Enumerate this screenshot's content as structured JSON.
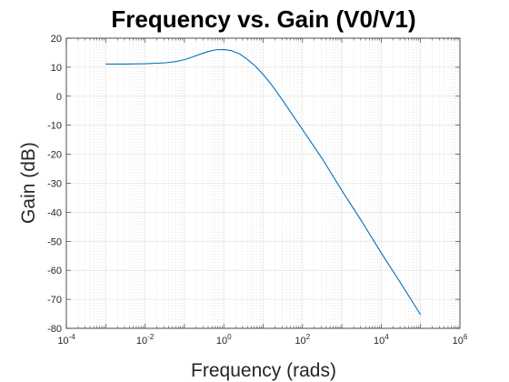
{
  "chart_data": {
    "type": "line",
    "title": "Frequency vs. Gain (V0/V1)",
    "xlabel": "Frequency (rads)",
    "ylabel": "Gain (dB)",
    "xscale": "log",
    "xlim_exp": [
      -4,
      6
    ],
    "ylim": [
      -80,
      20
    ],
    "grid": true,
    "minor_grid": true,
    "x_ticks": [
      {
        "base": "10",
        "exp": "-4"
      },
      {
        "base": "10",
        "exp": "-2"
      },
      {
        "base": "10",
        "exp": "0"
      },
      {
        "base": "10",
        "exp": "2"
      },
      {
        "base": "10",
        "exp": "4"
      },
      {
        "base": "10",
        "exp": "6"
      }
    ],
    "y_ticks": [
      "20",
      "10",
      "0",
      "-10",
      "-20",
      "-30",
      "-40",
      "-50",
      "-60",
      "-70",
      "-80"
    ],
    "series": [
      {
        "name": "gain",
        "color": "#0072BD",
        "x_log10": [
          -3,
          -2.5,
          -2,
          -1.5,
          -1.2,
          -1,
          -0.8,
          -0.6,
          -0.4,
          -0.2,
          0,
          0.2,
          0.4,
          0.6,
          0.8,
          1,
          1.2,
          1.5,
          2,
          2.5,
          3,
          3.5,
          4,
          4.5,
          5
        ],
        "y": [
          11.1,
          11.1,
          11.2,
          11.5,
          12.0,
          12.6,
          13.5,
          14.5,
          15.4,
          16.0,
          16.1,
          15.7,
          14.6,
          12.7,
          10.4,
          7.5,
          4.2,
          -1.5,
          -11.5,
          -21.5,
          -32.5,
          -43.0,
          -54.0,
          -64.5,
          -75.3
        ]
      }
    ]
  }
}
